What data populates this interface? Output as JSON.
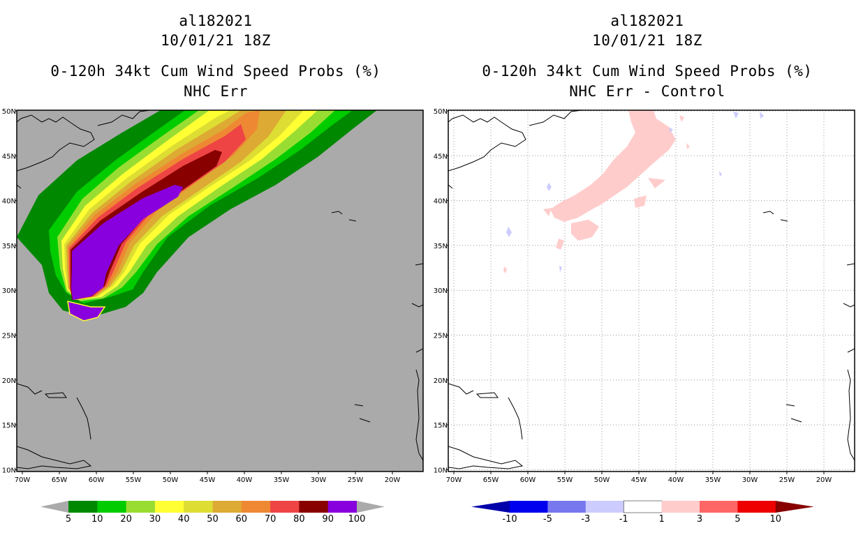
{
  "left_panel": {
    "storm_id": "al182021",
    "datetime": "10/01/21 18Z",
    "product": "0-120h 34kt Cum Wind Speed Probs (%)",
    "subtitle": "NHC Err",
    "lon_labels": [
      "70W",
      "65W",
      "60W",
      "55W",
      "50W",
      "45W",
      "40W",
      "35W",
      "30W",
      "25W",
      "20W"
    ],
    "lat_labels": [
      "50N",
      "45N",
      "40N",
      "35N",
      "30N",
      "25N",
      "20N",
      "15N",
      "10N"
    ],
    "colorbar": {
      "labels": [
        "5",
        "10",
        "20",
        "30",
        "40",
        "50",
        "60",
        "70",
        "80",
        "90",
        "100"
      ],
      "colors": [
        "#008800",
        "#00cc00",
        "#99dd33",
        "#ffff33",
        "#dddd33",
        "#ddaa33",
        "#ee8833",
        "#ee4444",
        "#880000",
        "#8800dd"
      ],
      "extend_color": "#aaaaaa"
    },
    "background_color": "#aaaaaa"
  },
  "right_panel": {
    "storm_id": "al182021",
    "datetime": "10/01/21 18Z",
    "product": "0-120h 34kt Cum Wind Speed Probs (%)",
    "subtitle": "NHC Err - Control",
    "lon_labels": [
      "70W",
      "65W",
      "60W",
      "55W",
      "50W",
      "45W",
      "40W",
      "35W",
      "30W",
      "25W",
      "20W"
    ],
    "lat_labels": [
      "50N",
      "45N",
      "40N",
      "35N",
      "30N",
      "25N",
      "20N",
      "15N",
      "10N"
    ],
    "colorbar": {
      "labels": [
        "-10",
        "-5",
        "-3",
        "-1",
        "1",
        "3",
        "5",
        "10"
      ],
      "colors": [
        "#0000aa",
        "#0000ee",
        "#7777ee",
        "#ccccff",
        "#ffffff",
        "#ffcccc",
        "#ff6666",
        "#ee0000",
        "#880000"
      ]
    },
    "background_color": "#ffffff"
  }
}
